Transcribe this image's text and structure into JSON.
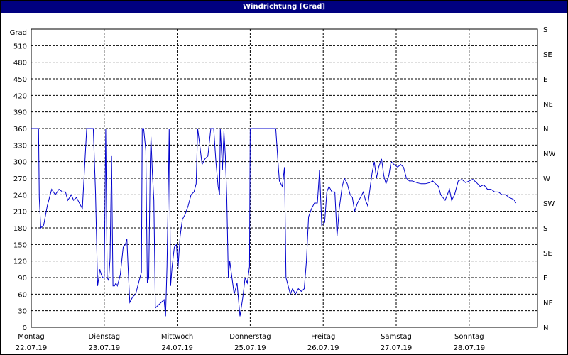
{
  "window": {
    "title": "Windrichtung [Grad]"
  },
  "chart_data": {
    "type": "line",
    "ylabel": "Grad",
    "ylim": [
      0,
      540
    ],
    "y_ticks": [
      0,
      30,
      60,
      90,
      120,
      150,
      180,
      210,
      240,
      270,
      300,
      330,
      360,
      390,
      420,
      450,
      480,
      510
    ],
    "right_ticks": [
      {
        "value": 0,
        "label": "N"
      },
      {
        "value": 45,
        "label": "NE"
      },
      {
        "value": 90,
        "label": "E"
      },
      {
        "value": 135,
        "label": "SE"
      },
      {
        "value": 180,
        "label": "S"
      },
      {
        "value": 225,
        "label": "SW"
      },
      {
        "value": 270,
        "label": "W"
      },
      {
        "value": 315,
        "label": "NW"
      },
      {
        "value": 360,
        "label": "N"
      },
      {
        "value": 405,
        "label": "NE"
      },
      {
        "value": 450,
        "label": "E"
      },
      {
        "value": 495,
        "label": "SE"
      },
      {
        "value": 540,
        "label": "S"
      }
    ],
    "days": [
      {
        "name": "Montag",
        "date": "22.07.19"
      },
      {
        "name": "Dienstag",
        "date": "23.07.19"
      },
      {
        "name": "Mittwoch",
        "date": "24.07.19"
      },
      {
        "name": "Donnerstag",
        "date": "25.07.19"
      },
      {
        "name": "Freitag",
        "date": "26.07.19"
      },
      {
        "name": "Samstag",
        "date": "27.07.19"
      },
      {
        "name": "Sonntag",
        "date": "28.07.19"
      }
    ],
    "xlim": [
      0,
      7
    ],
    "grid": true,
    "series": [
      {
        "color": "#0000cc",
        "points": [
          [
            0.0,
            360
          ],
          [
            0.1,
            360
          ],
          [
            0.11,
            235
          ],
          [
            0.13,
            180
          ],
          [
            0.17,
            185
          ],
          [
            0.22,
            220
          ],
          [
            0.28,
            250
          ],
          [
            0.33,
            240
          ],
          [
            0.38,
            250
          ],
          [
            0.43,
            245
          ],
          [
            0.47,
            245
          ],
          [
            0.5,
            230
          ],
          [
            0.55,
            240
          ],
          [
            0.58,
            230
          ],
          [
            0.62,
            235
          ],
          [
            0.66,
            225
          ],
          [
            0.7,
            215
          ],
          [
            0.76,
            360
          ],
          [
            0.85,
            360
          ],
          [
            0.88,
            245
          ],
          [
            0.91,
            75
          ],
          [
            0.94,
            105
          ],
          [
            0.96,
            95
          ],
          [
            0.98,
            90
          ],
          [
            1.0,
            90
          ],
          [
            1.02,
            360
          ],
          [
            1.04,
            90
          ],
          [
            1.06,
            85
          ],
          [
            1.08,
            125
          ],
          [
            1.1,
            310
          ],
          [
            1.12,
            75
          ],
          [
            1.14,
            75
          ],
          [
            1.16,
            80
          ],
          [
            1.18,
            75
          ],
          [
            1.22,
            95
          ],
          [
            1.26,
            145
          ],
          [
            1.29,
            150
          ],
          [
            1.31,
            160
          ],
          [
            1.33,
            100
          ],
          [
            1.35,
            45
          ],
          [
            1.39,
            55
          ],
          [
            1.43,
            60
          ],
          [
            1.48,
            85
          ],
          [
            1.51,
            100
          ],
          [
            1.52,
            360
          ],
          [
            1.54,
            360
          ],
          [
            1.57,
            320
          ],
          [
            1.59,
            80
          ],
          [
            1.61,
            90
          ],
          [
            1.63,
            300
          ],
          [
            1.64,
            345
          ],
          [
            1.66,
            280
          ],
          [
            1.68,
            230
          ],
          [
            1.7,
            35
          ],
          [
            1.74,
            40
          ],
          [
            1.78,
            45
          ],
          [
            1.82,
            50
          ],
          [
            1.84,
            20
          ],
          [
            1.86,
            110
          ],
          [
            1.88,
            270
          ],
          [
            1.89,
            360
          ],
          [
            1.91,
            75
          ],
          [
            1.93,
            110
          ],
          [
            1.96,
            145
          ],
          [
            1.99,
            150
          ],
          [
            2.01,
            105
          ],
          [
            2.04,
            165
          ],
          [
            2.07,
            195
          ],
          [
            2.11,
            205
          ],
          [
            2.15,
            220
          ],
          [
            2.19,
            240
          ],
          [
            2.23,
            245
          ],
          [
            2.26,
            260
          ],
          [
            2.28,
            360
          ],
          [
            2.3,
            340
          ],
          [
            2.34,
            295
          ],
          [
            2.38,
            305
          ],
          [
            2.42,
            310
          ],
          [
            2.46,
            360
          ],
          [
            2.5,
            360
          ],
          [
            2.53,
            300
          ],
          [
            2.56,
            255
          ],
          [
            2.58,
            240
          ],
          [
            2.59,
            360
          ],
          [
            2.62,
            285
          ],
          [
            2.64,
            355
          ],
          [
            2.66,
            310
          ],
          [
            2.68,
            230
          ],
          [
            2.7,
            90
          ],
          [
            2.72,
            120
          ],
          [
            2.75,
            90
          ],
          [
            2.78,
            60
          ],
          [
            2.82,
            80
          ],
          [
            2.86,
            20
          ],
          [
            2.9,
            55
          ],
          [
            2.93,
            90
          ],
          [
            2.96,
            80
          ],
          [
            2.99,
            110
          ],
          [
            3.0,
            360
          ],
          [
            3.35,
            360
          ],
          [
            3.38,
            300
          ],
          [
            3.4,
            265
          ],
          [
            3.44,
            255
          ],
          [
            3.47,
            290
          ],
          [
            3.49,
            90
          ],
          [
            3.52,
            75
          ],
          [
            3.55,
            60
          ],
          [
            3.58,
            70
          ],
          [
            3.62,
            60
          ],
          [
            3.66,
            70
          ],
          [
            3.7,
            65
          ],
          [
            3.74,
            70
          ],
          [
            3.77,
            120
          ],
          [
            3.8,
            200
          ],
          [
            3.84,
            215
          ],
          [
            3.88,
            225
          ],
          [
            3.92,
            225
          ],
          [
            3.95,
            285
          ],
          [
            3.98,
            185
          ],
          [
            4.02,
            190
          ],
          [
            4.05,
            245
          ],
          [
            4.08,
            255
          ],
          [
            4.12,
            245
          ],
          [
            4.16,
            245
          ],
          [
            4.19,
            165
          ],
          [
            4.22,
            215
          ],
          [
            4.26,
            255
          ],
          [
            4.29,
            270
          ],
          [
            4.33,
            260
          ],
          [
            4.37,
            240
          ],
          [
            4.4,
            235
          ],
          [
            4.43,
            210
          ],
          [
            4.47,
            225
          ],
          [
            4.51,
            235
          ],
          [
            4.55,
            245
          ],
          [
            4.58,
            230
          ],
          [
            4.61,
            220
          ],
          [
            4.64,
            250
          ],
          [
            4.67,
            280
          ],
          [
            4.7,
            300
          ],
          [
            4.73,
            270
          ],
          [
            4.76,
            290
          ],
          [
            4.8,
            305
          ],
          [
            4.83,
            275
          ],
          [
            4.86,
            260
          ],
          [
            4.9,
            275
          ],
          [
            4.93,
            300
          ],
          [
            4.97,
            295
          ],
          [
            5.02,
            290
          ],
          [
            5.06,
            295
          ],
          [
            5.1,
            290
          ],
          [
            5.14,
            270
          ],
          [
            5.18,
            265
          ],
          [
            5.22,
            265
          ],
          [
            5.28,
            262
          ],
          [
            5.34,
            260
          ],
          [
            5.4,
            260
          ],
          [
            5.46,
            262
          ],
          [
            5.5,
            265
          ],
          [
            5.54,
            260
          ],
          [
            5.58,
            255
          ],
          [
            5.61,
            240
          ],
          [
            5.64,
            235
          ],
          [
            5.67,
            230
          ],
          [
            5.7,
            240
          ],
          [
            5.73,
            250
          ],
          [
            5.76,
            230
          ],
          [
            5.8,
            240
          ],
          [
            5.85,
            265
          ],
          [
            5.9,
            268
          ],
          [
            5.95,
            262
          ],
          [
            6.0,
            265
          ],
          [
            6.05,
            268
          ],
          [
            6.1,
            262
          ],
          [
            6.15,
            255
          ],
          [
            6.2,
            258
          ],
          [
            6.25,
            250
          ],
          [
            6.3,
            250
          ],
          [
            6.35,
            245
          ],
          [
            6.4,
            245
          ],
          [
            6.45,
            240
          ],
          [
            6.5,
            240
          ],
          [
            6.55,
            235
          ],
          [
            6.6,
            232
          ],
          [
            6.62,
            230
          ],
          [
            6.64,
            225
          ]
        ]
      }
    ]
  }
}
